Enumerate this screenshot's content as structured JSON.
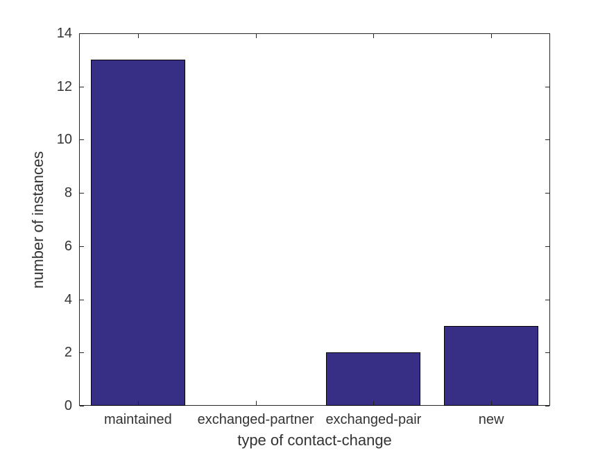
{
  "figure": {
    "background": "#ffffff"
  },
  "chart_data": {
    "type": "bar",
    "title": "",
    "xlabel": "type of contact-change",
    "ylabel": "number of instances",
    "categories": [
      "maintained",
      "exchanged-partner",
      "exchanged-pair",
      "new"
    ],
    "values": [
      13,
      0,
      2,
      3
    ],
    "ylim": [
      0,
      14
    ],
    "yticks": [
      0,
      2,
      4,
      6,
      8,
      10,
      12,
      14
    ],
    "grid": false,
    "legend_position": "none",
    "bar_color": "#372e85",
    "bar_edge_color": "#000000",
    "axis_color": "#262626",
    "text_color": "#333333"
  }
}
